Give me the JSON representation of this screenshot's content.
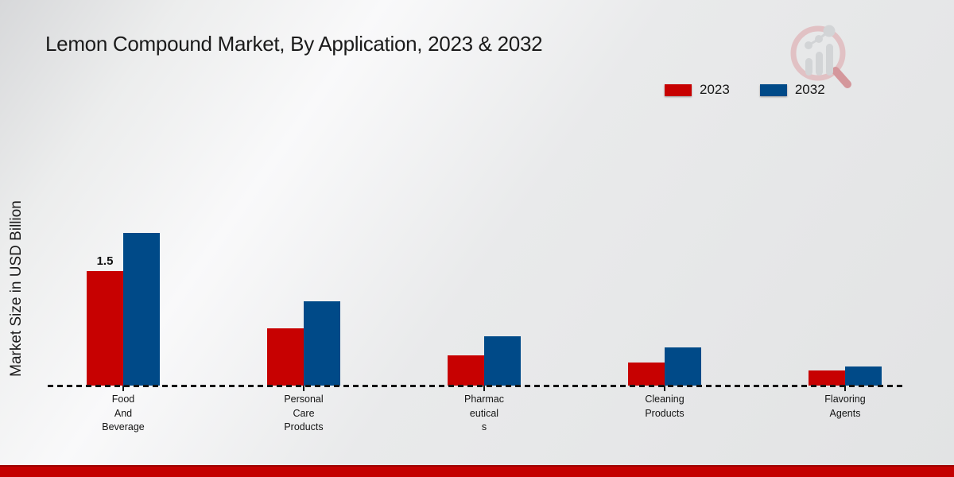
{
  "page": {
    "title": "Lemon Compound Market, By Application, 2023 & 2032"
  },
  "chart_data": {
    "type": "bar",
    "title": "Lemon Compound Market, By Application, 2023 & 2032",
    "ylabel": "Market Size in USD Billion",
    "xlabel": "",
    "categories": [
      "Food And Beverage",
      "Personal Care Products",
      "Pharmaceuticals",
      "Cleaning Products",
      "Flavoring Agents"
    ],
    "category_label_lines": [
      [
        "Food",
        "And",
        "Beverage"
      ],
      [
        "Personal",
        "Care",
        "Products"
      ],
      [
        "Pharmac",
        "eutical",
        "s"
      ],
      [
        "Cleaning",
        "Products"
      ],
      [
        "Flavoring",
        "Agents"
      ]
    ],
    "series": [
      {
        "name": "2023",
        "color": "#c70101",
        "values": [
          1.5,
          0.75,
          0.4,
          0.3,
          0.2
        ],
        "value_labels": [
          "1.5",
          "",
          "",
          "",
          ""
        ]
      },
      {
        "name": "2032",
        "color": "#004a88",
        "values": [
          2.0,
          1.1,
          0.65,
          0.5,
          0.25
        ],
        "value_labels": [
          "",
          "",
          "",
          "",
          ""
        ]
      }
    ],
    "ylim": [
      0,
      2.3
    ],
    "grid": false,
    "legend_position": "top-right",
    "baseline_style": "dashed"
  },
  "legend": {
    "items": [
      {
        "label": "2023",
        "color": "#c70101"
      },
      {
        "label": "2032",
        "color": "#004a88"
      }
    ]
  },
  "watermark": {
    "icon": "magnifier-bar-chart-logo"
  },
  "footer": {
    "bar_color": "#c40000"
  }
}
